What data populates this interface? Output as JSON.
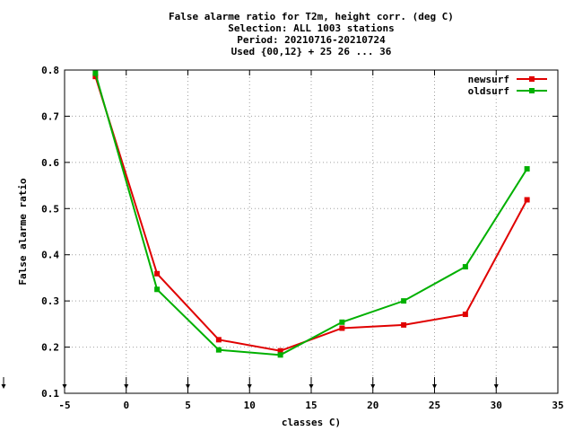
{
  "chart_data": {
    "type": "line",
    "title_lines": [
      "False alarme ratio  for T2m, height corr. (deg C)",
      "Selection: ALL   1003 stations",
      "Period: 20210716-20210724",
      "Used {00,12} + 25 26 ... 36"
    ],
    "xlabel": "classes C)",
    "ylabel": "False alarme ratio",
    "xlim": [
      -5,
      35
    ],
    "ylim": [
      0.1,
      0.8
    ],
    "xticks": [
      -5,
      0,
      5,
      10,
      15,
      20,
      25,
      30,
      35
    ],
    "yticks": [
      0.1,
      0.2,
      0.3,
      0.4,
      0.5,
      0.6,
      0.7,
      0.8
    ],
    "xtick_labels": [
      "-5",
      "0",
      "5",
      "10",
      "15",
      "20",
      "25",
      "30",
      "35"
    ],
    "ytick_labels": [
      "0.1",
      "0.2",
      "0.3",
      "0.4",
      "0.5",
      "0.6",
      "0.7",
      "0.8"
    ],
    "grid": true,
    "legend_position": "top-right",
    "class_markers": [
      -5,
      0,
      5,
      10,
      15,
      20,
      25,
      30
    ],
    "series": [
      {
        "name": "newsurf",
        "color": "#e00000",
        "x": [
          -2.5,
          2.5,
          7.5,
          12.5,
          17.5,
          22.5,
          27.5,
          32.5
        ],
        "y": [
          0.786,
          0.359,
          0.216,
          0.192,
          0.241,
          0.248,
          0.271,
          0.519
        ]
      },
      {
        "name": "oldsurf",
        "color": "#00b000",
        "x": [
          -2.5,
          2.5,
          7.5,
          12.5,
          17.5,
          22.5,
          27.5,
          32.5
        ],
        "y": [
          0.793,
          0.325,
          0.194,
          0.183,
          0.254,
          0.3,
          0.374,
          0.586
        ]
      }
    ]
  }
}
